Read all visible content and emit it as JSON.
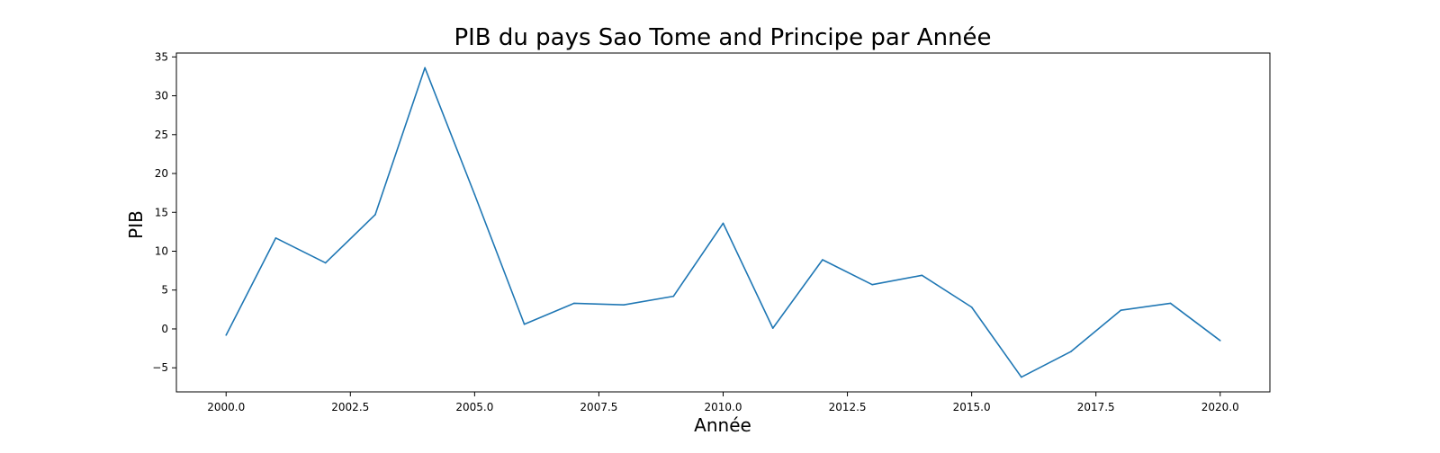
{
  "chart_data": {
    "type": "line",
    "title": "PIB du pays Sao Tome and Principe par Année",
    "xlabel": "Année",
    "ylabel": "PIB",
    "x": [
      2000,
      2001,
      2002,
      2003,
      2004,
      2005,
      2006,
      2007,
      2008,
      2009,
      2010,
      2011,
      2012,
      2013,
      2014,
      2015,
      2016,
      2017,
      2018,
      2019,
      2020
    ],
    "series": [
      {
        "values": [
          -0.8,
          11.7,
          8.5,
          14.7,
          33.6,
          17.3,
          0.6,
          3.3,
          3.1,
          4.2,
          13.6,
          0.1,
          8.9,
          5.7,
          6.9,
          2.8,
          -6.2,
          -2.9,
          2.4,
          3.3,
          -1.5
        ],
        "color": "#1f77b4"
      }
    ],
    "xlim": [
      1999.0,
      2021.0
    ],
    "ylim": [
      -8.1,
      35.5
    ],
    "xticks": [
      2000.0,
      2002.5,
      2005.0,
      2007.5,
      2010.0,
      2012.5,
      2015.0,
      2017.5,
      2020.0
    ],
    "xtick_labels": [
      "2000.0",
      "2002.5",
      "2005.0",
      "2007.5",
      "2010.0",
      "2012.5",
      "2015.0",
      "2017.5",
      "2020.0"
    ],
    "yticks": [
      -5,
      0,
      5,
      10,
      15,
      20,
      25,
      30,
      35
    ],
    "ytick_labels": [
      "−5",
      "0",
      "5",
      "10",
      "15",
      "20",
      "25",
      "30",
      "35"
    ],
    "grid": false,
    "legend": false
  }
}
